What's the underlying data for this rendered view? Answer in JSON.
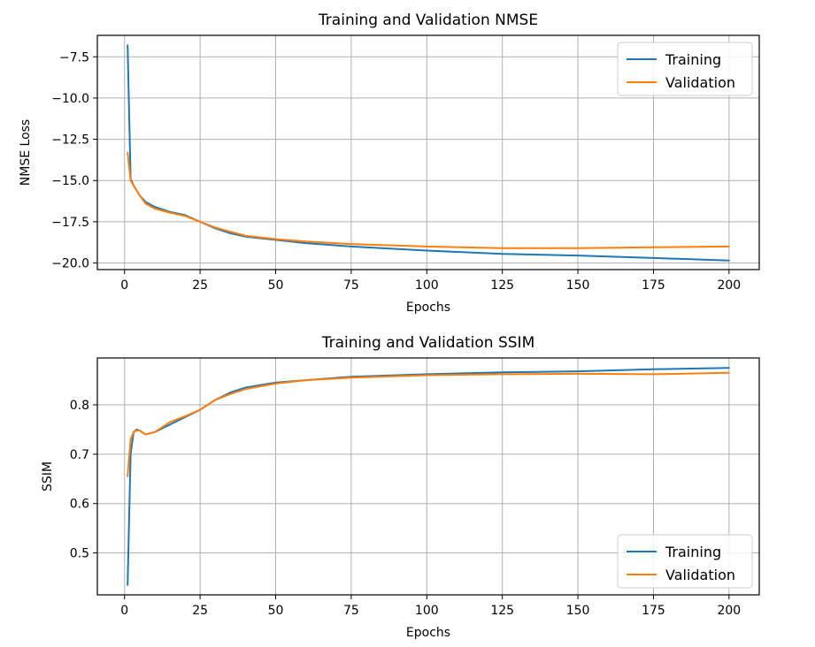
{
  "colors": {
    "training": "#1f77b4",
    "validation": "#ff7f0e"
  },
  "chart_data": [
    {
      "type": "line",
      "title": "Training and Validation NMSE",
      "xlabel": "Epochs",
      "ylabel": "NMSE Loss",
      "xlim": [
        -9,
        210
      ],
      "ylim": [
        -20.4,
        -6.2
      ],
      "xticks": [
        0,
        25,
        50,
        75,
        100,
        125,
        150,
        175,
        200
      ],
      "yticks": [
        -20.0,
        -17.5,
        -15.0,
        -12.5,
        -10.0,
        -7.5
      ],
      "ytick_labels": [
        "−20.0",
        "−17.5",
        "−15.0",
        "−12.5",
        "−10.0",
        "−7.5"
      ],
      "grid": true,
      "legend_position": "top-right",
      "series": [
        {
          "name": "Training",
          "color_key": "training",
          "x": [
            1,
            2,
            3,
            5,
            7,
            10,
            15,
            20,
            25,
            30,
            35,
            40,
            50,
            60,
            75,
            100,
            125,
            150,
            175,
            200
          ],
          "y": [
            -6.8,
            -14.9,
            -15.3,
            -15.9,
            -16.3,
            -16.6,
            -16.9,
            -17.1,
            -17.5,
            -17.9,
            -18.2,
            -18.4,
            -18.6,
            -18.8,
            -19.0,
            -19.25,
            -19.45,
            -19.55,
            -19.7,
            -19.85
          ]
        },
        {
          "name": "Validation",
          "color_key": "validation",
          "x": [
            1,
            2,
            3,
            5,
            7,
            10,
            15,
            20,
            25,
            30,
            35,
            40,
            50,
            60,
            75,
            100,
            125,
            150,
            175,
            200
          ],
          "y": [
            -13.3,
            -15.0,
            -15.3,
            -15.9,
            -16.4,
            -16.7,
            -16.95,
            -17.15,
            -17.5,
            -17.85,
            -18.1,
            -18.35,
            -18.55,
            -18.7,
            -18.85,
            -19.0,
            -19.1,
            -19.1,
            -19.05,
            -19.0
          ]
        }
      ]
    },
    {
      "type": "line",
      "title": "Training and Validation SSIM",
      "xlabel": "Epochs",
      "ylabel": "SSIM",
      "xlim": [
        -9,
        210
      ],
      "ylim": [
        0.415,
        0.895
      ],
      "xticks": [
        0,
        25,
        50,
        75,
        100,
        125,
        150,
        175,
        200
      ],
      "yticks": [
        0.5,
        0.6,
        0.7,
        0.8
      ],
      "ytick_labels": [
        "0.5",
        "0.6",
        "0.7",
        "0.8"
      ],
      "grid": true,
      "legend_position": "bottom-right",
      "series": [
        {
          "name": "Training",
          "color_key": "training",
          "x": [
            1,
            2,
            3,
            4,
            5,
            7,
            10,
            15,
            20,
            25,
            30,
            35,
            40,
            50,
            60,
            75,
            100,
            125,
            150,
            175,
            200
          ],
          "y": [
            0.435,
            0.7,
            0.745,
            0.75,
            0.748,
            0.74,
            0.745,
            0.76,
            0.775,
            0.79,
            0.81,
            0.825,
            0.835,
            0.845,
            0.85,
            0.857,
            0.862,
            0.866,
            0.868,
            0.872,
            0.875
          ]
        },
        {
          "name": "Validation",
          "color_key": "validation",
          "x": [
            1,
            2,
            3,
            4,
            5,
            7,
            10,
            15,
            20,
            25,
            30,
            35,
            40,
            50,
            60,
            75,
            100,
            125,
            150,
            175,
            200
          ],
          "y": [
            0.655,
            0.73,
            0.745,
            0.748,
            0.748,
            0.74,
            0.745,
            0.765,
            0.777,
            0.79,
            0.81,
            0.822,
            0.832,
            0.843,
            0.85,
            0.855,
            0.86,
            0.862,
            0.863,
            0.862,
            0.865
          ]
        }
      ]
    }
  ]
}
